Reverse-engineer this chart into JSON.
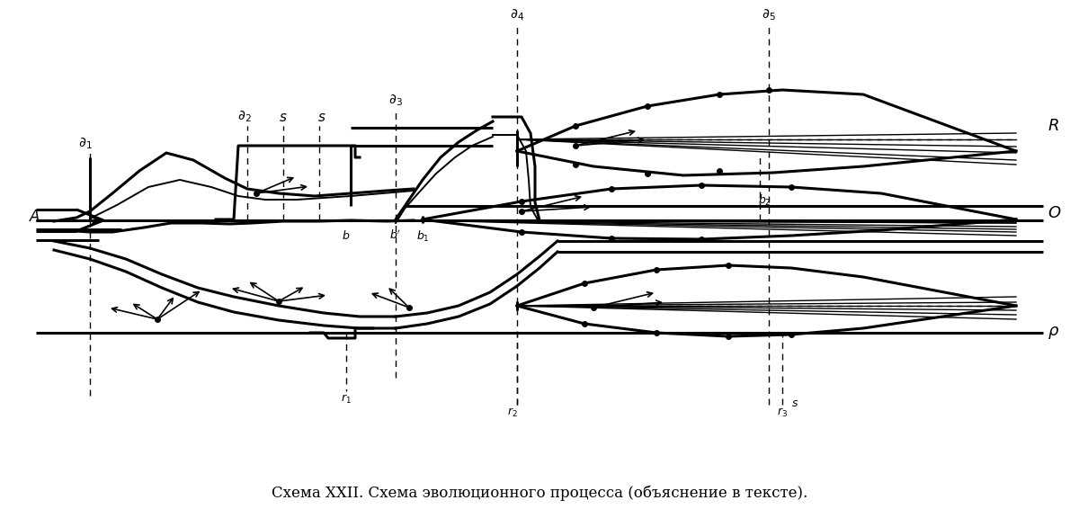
{
  "title": "Схема XXII. Схема эволюционного процесса (объяснение в тексте).",
  "bg_color": "#ffffff",
  "line_color": "#000000",
  "title_fontsize": 12,
  "label_fontsize": 11,
  "small_fontsize": 9,
  "fig_width": 12.0,
  "fig_height": 5.76,
  "dpi": 100
}
